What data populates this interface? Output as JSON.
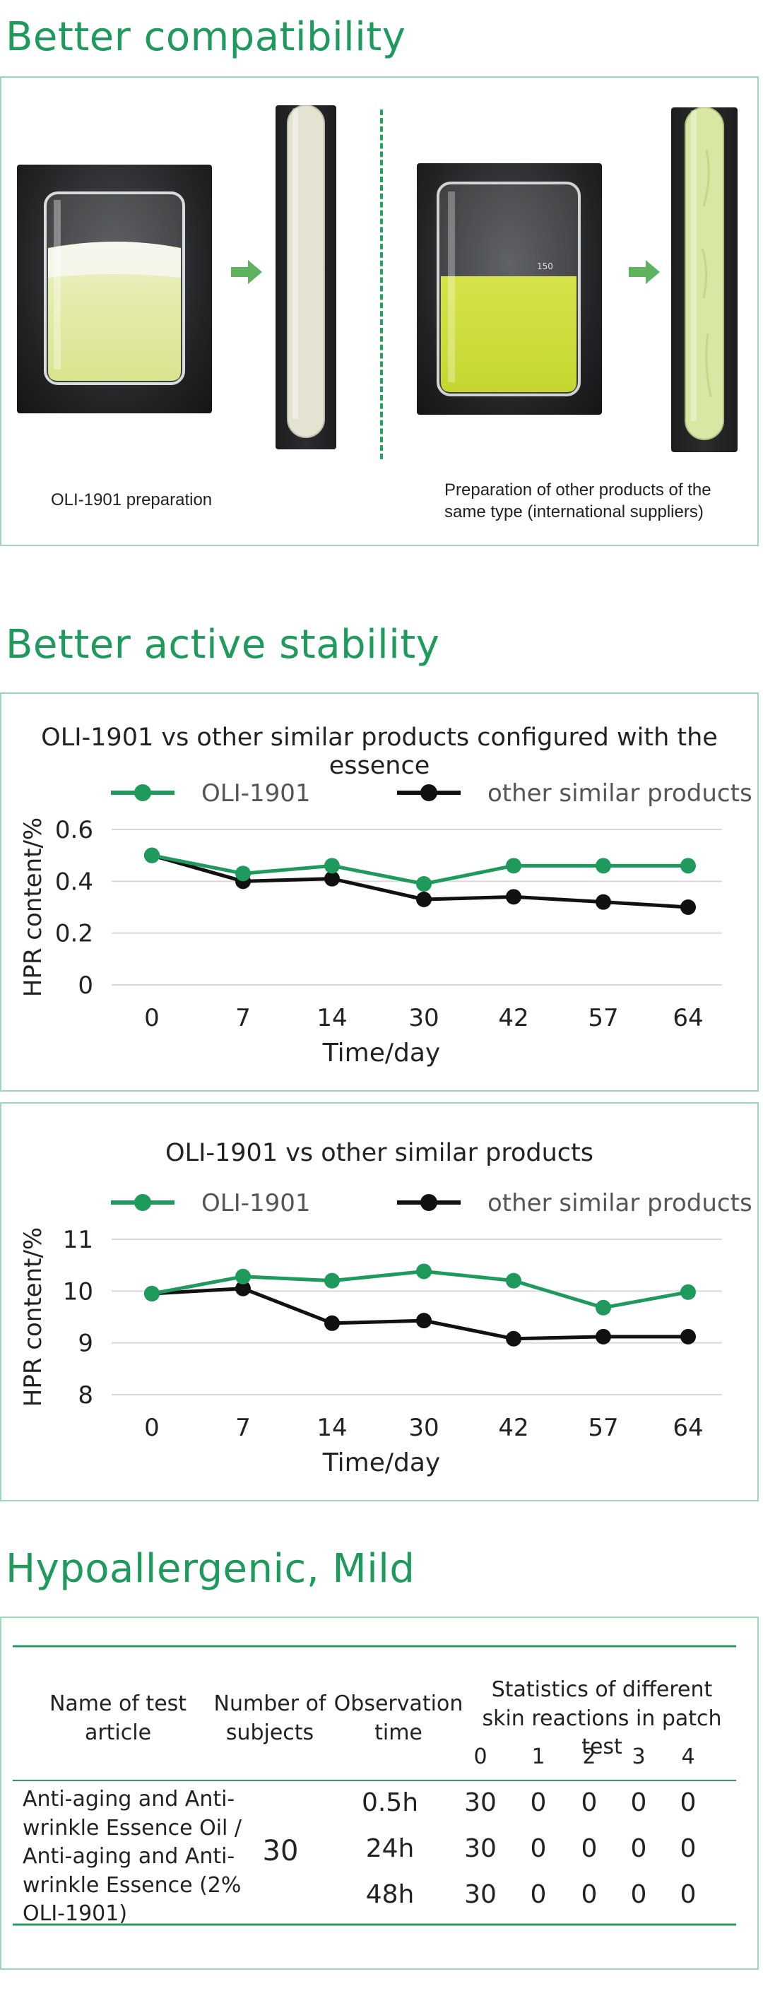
{
  "sections": {
    "compat_title": "Better compatibility",
    "stability_title": "Better active stability",
    "hypo_title": "Hypoallergenic, Mild"
  },
  "compat": {
    "left_caption": "OLI-1901 preparation",
    "right_caption": "Preparation of other products of the same type (international suppliers)",
    "beaker_marks": "150"
  },
  "chart_data": [
    {
      "type": "line",
      "title": "OLI-1901 vs other similar products configured with the essence",
      "xlabel": "Time/day",
      "ylabel": "HPR content/%",
      "categories": [
        "0",
        "7",
        "14",
        "30",
        "42",
        "57",
        "64"
      ],
      "yticks": [
        "0",
        "0.2",
        "0.4",
        "0.6"
      ],
      "ylim": [
        0,
        0.6
      ],
      "grid": true,
      "legend": "top",
      "series": [
        {
          "name": "OLI-1901",
          "color": "#1d9a5c",
          "values": [
            0.5,
            0.43,
            0.46,
            0.39,
            0.46,
            0.46,
            0.46
          ]
        },
        {
          "name": "other similar products",
          "color": "#111111",
          "values": [
            0.5,
            0.4,
            0.41,
            0.33,
            0.34,
            0.32,
            0.3
          ]
        }
      ]
    },
    {
      "type": "line",
      "title": "OLI-1901 vs other similar products",
      "xlabel": "Time/day",
      "ylabel": "HPR content/%",
      "categories": [
        "0",
        "7",
        "14",
        "30",
        "42",
        "57",
        "64"
      ],
      "yticks": [
        "8",
        "9",
        "10",
        "11"
      ],
      "ylim": [
        8,
        11
      ],
      "grid": true,
      "legend": "top",
      "series": [
        {
          "name": "OLI-1901",
          "color": "#1d9a5c",
          "values": [
            9.95,
            10.28,
            10.2,
            10.38,
            10.2,
            9.68,
            9.98
          ]
        },
        {
          "name": "other similar products",
          "color": "#111111",
          "values": [
            9.95,
            10.05,
            9.38,
            9.43,
            9.08,
            9.12,
            9.12
          ]
        }
      ]
    }
  ],
  "table": {
    "headers": {
      "name": "Name of test article",
      "subjects": "Number of subjects",
      "observation": "Observation time",
      "stats": "Statistics of different skin reactions in patch test",
      "grades": [
        "0",
        "1",
        "2",
        "3",
        "4"
      ]
    },
    "article": "Anti-aging and Anti-wrinkle Essence Oil / Anti-aging and Anti-wrinkle Essence (2% OLI-1901)",
    "subjects": "30",
    "rows": [
      {
        "time": "0.5h",
        "values": [
          "30",
          "0",
          "0",
          "0",
          "0"
        ]
      },
      {
        "time": "24h",
        "values": [
          "30",
          "0",
          "0",
          "0",
          "0"
        ]
      },
      {
        "time": "48h",
        "values": [
          "30",
          "0",
          "0",
          "0",
          "0"
        ]
      }
    ]
  }
}
